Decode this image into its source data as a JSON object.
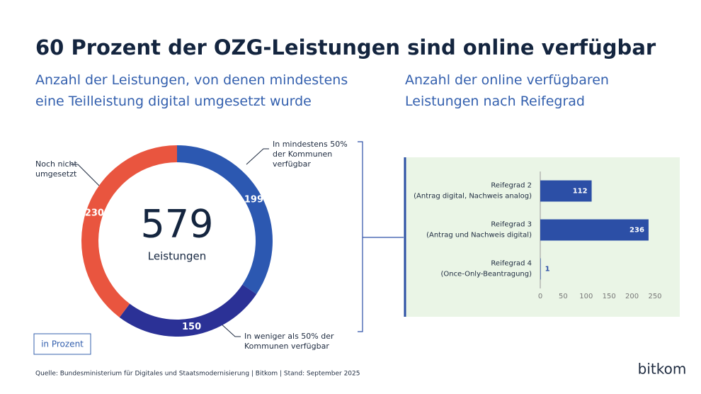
{
  "title": "60 Prozent der OZG-Leistungen sind online verfügbar",
  "source": "Quelle: Bundesministerium für Digitales und Staatsmodernisierung | Bitkom | Stand: September 2025",
  "logo": "bitkom",
  "unit_note": "in Prozent",
  "chart_data": [
    {
      "type": "donut",
      "subtitle": "Anzahl der Leistungen, von denen mindestens eine Teilleistung digital umgesetzt wurde",
      "center_value": 579,
      "center_label": "Leistungen",
      "labels": [
        "In mindestens 50% der Kommunen verfügbar",
        "In weniger als 50% der Kommunen verfügbar",
        "Noch nicht umgesetzt"
      ],
      "values": [
        199,
        150,
        230
      ],
      "colors": [
        "#2c58b1",
        "#2b3196",
        "#e9553f"
      ]
    },
    {
      "type": "bar",
      "subtitle": "Anzahl der online verfügbaren Leistungen nach Reifegrad",
      "categories": [
        "Reifegrad 2",
        "Reifegrad 3",
        "Reifegrad 4"
      ],
      "category_notes": [
        "(Antrag digital, Nachweis analog)",
        "(Antrag und Nachweis digital)",
        "(Once-Only-Beantragung)"
      ],
      "values": [
        112,
        236,
        1
      ],
      "color": "#2c4fa6",
      "xlim": [
        0,
        270
      ],
      "xticks": [
        0,
        50,
        100,
        150,
        200,
        250
      ]
    }
  ]
}
